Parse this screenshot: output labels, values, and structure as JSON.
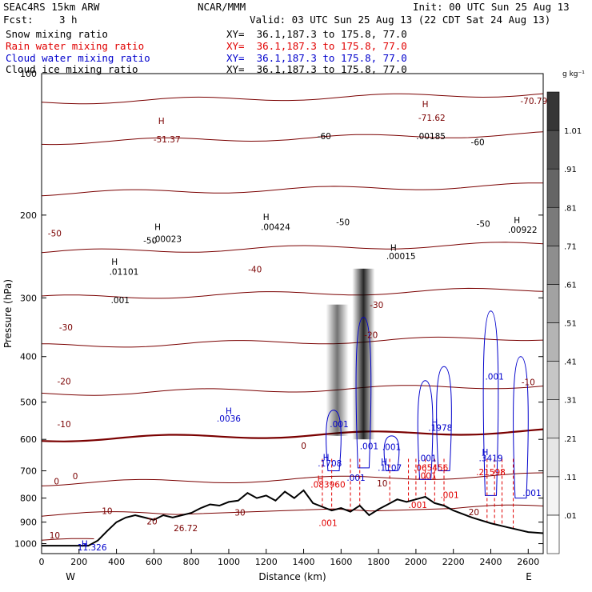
{
  "header": {
    "model": "SEAC4RS 15km ARW",
    "center": "NCAR/MMM",
    "init": "Init: 00 UTC Sun 25 Aug 13",
    "fcst_label": "Fcst:",
    "fcst_value": "3 h",
    "valid": "Valid: 03 UTC Sun 25 Aug 13 (22 CDT Sat 24 Aug 13)",
    "fields": [
      {
        "name": "Snow mixing ratio",
        "xy": "XY=  36.1,187.3 to 175.8, 77.0",
        "color": "#000000"
      },
      {
        "name": "Rain water mixing ratio",
        "xy": "XY=  36.1,187.3 to 175.8, 77.0",
        "color": "#e00000"
      },
      {
        "name": "Cloud water mixing ratio",
        "xy": "XY=  36.1,187.3 to 175.8, 77.0",
        "color": "#0000cc"
      },
      {
        "name": "Cloud ice mixing ratio",
        "xy": "XY=  36.1,187.3 to 175.8, 77.0",
        "color": "#000000"
      }
    ]
  },
  "chart_data": {
    "type": "cross-section",
    "xlabel": "Distance (km)",
    "ylabel": "Pressure (hPa)",
    "xlim": [
      0,
      2680
    ],
    "ylim": [
      1050,
      100
    ],
    "y_scale": "log",
    "x_ticks": [
      0,
      200,
      400,
      600,
      800,
      1000,
      1200,
      1400,
      1600,
      1800,
      2000,
      2200,
      2400,
      2600
    ],
    "y_ticks": [
      100,
      200,
      300,
      400,
      500,
      600,
      700,
      800,
      900,
      1000
    ],
    "x_end_labels": {
      "left": "W",
      "right": "E"
    },
    "colorbar": {
      "unit": "g kg⁻¹",
      "levels": [
        ".01",
        ".11",
        ".21",
        ".31",
        ".41",
        ".51",
        ".61",
        ".71",
        ".81",
        ".91",
        "1.01"
      ],
      "colors": [
        "#ffffff",
        "#f4f4f4",
        "#e6e6e6",
        "#d6d6d6",
        "#c6c6c6",
        "#b4b4b4",
        "#a2a2a2",
        "#8e8e8e",
        "#7a7a7a",
        "#656565",
        "#4e4e4e",
        "#363636"
      ]
    },
    "temperature_contours": [
      {
        "label": "-70",
        "p": 115
      },
      {
        "label": "-60",
        "p": 140
      },
      {
        "label": "-50",
        "p": 180
      },
      {
        "label": "-40",
        "p": 240
      },
      {
        "label": "-30",
        "p": 300
      },
      {
        "label": "-20",
        "p": 380
      },
      {
        "label": "-10",
        "p": 480
      },
      {
        "label": "0",
        "p": 600
      },
      {
        "label": "10",
        "p": 745
      },
      {
        "label": "20",
        "p": 870
      },
      {
        "label": "30",
        "p": 990
      }
    ],
    "annotations": [
      {
        "text": "-70.79",
        "x": 2630,
        "p": 116,
        "color": "#7a0000"
      },
      {
        "text": "H",
        "x": 2050,
        "p": 118,
        "color": "#7a0000"
      },
      {
        "text": "-71.62",
        "x": 2085,
        "p": 126,
        "color": "#7a0000"
      },
      {
        "text": "-60",
        "x": 1510,
        "p": 138,
        "color": "#000000"
      },
      {
        "text": "-60",
        "x": 2330,
        "p": 142,
        "color": "#000000"
      },
      {
        "text": ".00185",
        "x": 2080,
        "p": 138,
        "color": "#000000"
      },
      {
        "text": "H",
        "x": 640,
        "p": 128,
        "color": "#7a0000"
      },
      {
        "text": "-51.37",
        "x": 670,
        "p": 140,
        "color": "#7a0000"
      },
      {
        "text": "-50",
        "x": 70,
        "p": 222,
        "color": "#7a0000"
      },
      {
        "text": "-50",
        "x": 1610,
        "p": 210,
        "color": "#000000"
      },
      {
        "text": "-50",
        "x": 2360,
        "p": 212,
        "color": "#000000"
      },
      {
        "text": "H",
        "x": 620,
        "p": 215,
        "color": "#000000"
      },
      {
        "text": "-50",
        "x": 580,
        "p": 230,
        "color": "#000000"
      },
      {
        "text": ".00023",
        "x": 670,
        "p": 228,
        "color": "#000000"
      },
      {
        "text": "H",
        "x": 1200,
        "p": 205,
        "color": "#000000"
      },
      {
        "text": ".00424",
        "x": 1250,
        "p": 215,
        "color": "#000000"
      },
      {
        "text": "H",
        "x": 2540,
        "p": 208,
        "color": "#000000"
      },
      {
        "text": ".00922",
        "x": 2570,
        "p": 218,
        "color": "#000000"
      },
      {
        "text": "H",
        "x": 1880,
        "p": 238,
        "color": "#000000"
      },
      {
        "text": ".00015",
        "x": 1920,
        "p": 248,
        "color": "#000000"
      },
      {
        "text": "H",
        "x": 390,
        "p": 255,
        "color": "#000000"
      },
      {
        "text": ".01101",
        "x": 440,
        "p": 268,
        "color": "#000000"
      },
      {
        "text": "-40",
        "x": 1140,
        "p": 265,
        "color": "#7a0000"
      },
      {
        "text": ".001",
        "x": 420,
        "p": 308,
        "color": "#000000"
      },
      {
        "text": "-30",
        "x": 130,
        "p": 352,
        "color": "#7a0000"
      },
      {
        "text": "-30",
        "x": 1790,
        "p": 315,
        "color": "#7a0000"
      },
      {
        "text": "-20",
        "x": 120,
        "p": 458,
        "color": "#7a0000"
      },
      {
        "text": "-20",
        "x": 1760,
        "p": 365,
        "color": "#7a0000"
      },
      {
        "text": "-10",
        "x": 120,
        "p": 565,
        "color": "#7a0000"
      },
      {
        "text": "-10",
        "x": 2600,
        "p": 460,
        "color": "#7a0000"
      },
      {
        "text": "H",
        "x": 1000,
        "p": 530,
        "color": "#0000cc"
      },
      {
        "text": ".0036",
        "x": 1000,
        "p": 550,
        "color": "#0000cc"
      },
      {
        "text": ".001",
        "x": 1590,
        "p": 565,
        "color": "#0000cc"
      },
      {
        "text": ".001",
        "x": 2420,
        "p": 448,
        "color": "#0000cc"
      },
      {
        "text": "H",
        "x": 2100,
        "p": 560,
        "color": "#0000cc"
      },
      {
        "text": ".1978",
        "x": 2130,
        "p": 575,
        "color": "#0000cc"
      },
      {
        "text": ".001",
        "x": 1750,
        "p": 630,
        "color": "#0000cc"
      },
      {
        "text": ".001",
        "x": 1870,
        "p": 632,
        "color": "#0000cc"
      },
      {
        "text": "0",
        "x": 1400,
        "p": 628,
        "color": "#7a0000"
      },
      {
        "text": "H",
        "x": 1520,
        "p": 665,
        "color": "#0000cc"
      },
      {
        "text": ".1708",
        "x": 1540,
        "p": 685,
        "color": "#0000cc"
      },
      {
        "text": "H",
        "x": 1830,
        "p": 680,
        "color": "#0000cc"
      },
      {
        "text": ".1107",
        "x": 1860,
        "p": 700,
        "color": "#0000cc"
      },
      {
        "text": ".001",
        "x": 2060,
        "p": 668,
        "color": "#0000cc"
      },
      {
        "text": "H",
        "x": 2370,
        "p": 648,
        "color": "#0000cc"
      },
      {
        "text": ".3419",
        "x": 2400,
        "p": 668,
        "color": "#0000cc"
      },
      {
        "text": "0",
        "x": 180,
        "p": 730,
        "color": "#7a0000"
      },
      {
        "text": "0",
        "x": 80,
        "p": 748,
        "color": "#7a0000"
      },
      {
        "text": ".001",
        "x": 1680,
        "p": 735,
        "color": "#0000cc"
      },
      {
        "text": ".001",
        "x": 2060,
        "p": 728,
        "color": "#e00000"
      },
      {
        "text": "H",
        "x": 1490,
        "p": 740,
        "color": "#e00000"
      },
      {
        "text": ".083960",
        "x": 1530,
        "p": 760,
        "color": "#e00000"
      },
      {
        "text": ".065456",
        "x": 2080,
        "p": 700,
        "color": "#e00000"
      },
      {
        "text": ".21598",
        "x": 2400,
        "p": 715,
        "color": "#e00000"
      },
      {
        "text": "10",
        "x": 1820,
        "p": 755,
        "color": "#7a0000"
      },
      {
        "text": ".001",
        "x": 2620,
        "p": 792,
        "color": "#0000cc"
      },
      {
        "text": ".001",
        "x": 2180,
        "p": 800,
        "color": "#e00000"
      },
      {
        "text": ".001",
        "x": 2010,
        "p": 840,
        "color": "#e00000"
      },
      {
        "text": "10",
        "x": 350,
        "p": 865,
        "color": "#7a0000"
      },
      {
        "text": "30",
        "x": 1060,
        "p": 872,
        "color": "#7a0000"
      },
      {
        "text": "20",
        "x": 2310,
        "p": 870,
        "color": "#7a0000"
      },
      {
        "text": "20",
        "x": 590,
        "p": 910,
        "color": "#7a0000"
      },
      {
        "text": "26.72",
        "x": 770,
        "p": 940,
        "color": "#7a0000"
      },
      {
        "text": ".001",
        "x": 1530,
        "p": 918,
        "color": "#e00000"
      },
      {
        "text": "10",
        "x": 70,
        "p": 975,
        "color": "#7a0000"
      },
      {
        "text": "H",
        "x": 230,
        "p": 1015,
        "color": "#0000cc"
      },
      {
        "text": "11.326",
        "x": 270,
        "p": 1034,
        "color": "#0000cc"
      }
    ]
  }
}
